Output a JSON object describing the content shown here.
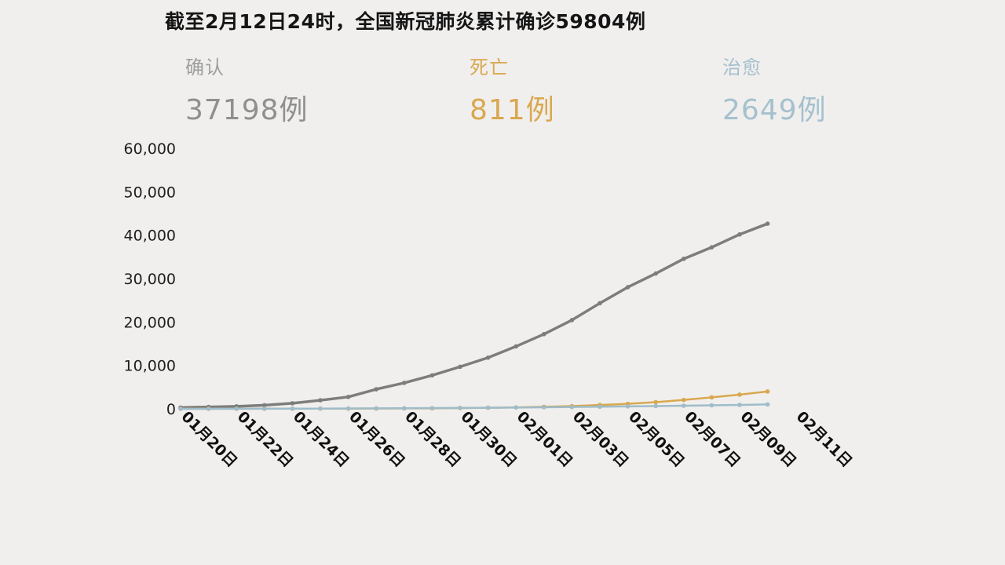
{
  "page": {
    "background": "#f0efee"
  },
  "title": "截至2月12日24时，全国新冠肺炎累计确诊59804例",
  "stats": [
    {
      "label": "确认",
      "value": "37198例",
      "color": "#8f8f8f",
      "label_color": "#9e9e9e"
    },
    {
      "label": "死亡",
      "value": "811例",
      "color": "#d9a84e",
      "label_color": "#d9a84e"
    },
    {
      "label": "治愈",
      "value": "2649例",
      "color": "#a5c1cd",
      "label_color": "#a5c1cd"
    }
  ],
  "chart_data": {
    "type": "line",
    "title": "",
    "xlabel": "",
    "ylabel": "",
    "ylim": [
      0,
      60000
    ],
    "grid": false,
    "legend_position": "none",
    "y_ticks": [
      0,
      10000,
      20000,
      30000,
      40000,
      50000,
      60000
    ],
    "x_tick_labels": [
      "01月20日",
      "01月22日",
      "01月24日",
      "01月26日",
      "01月28日",
      "01月30日",
      "02月01日",
      "02月03日",
      "02月05日",
      "02月07日",
      "02月09日",
      "02月11日"
    ],
    "x": [
      "01月20日",
      "01月21日",
      "01月22日",
      "01月23日",
      "01月24日",
      "01月25日",
      "01月26日",
      "01月27日",
      "01月28日",
      "01月29日",
      "01月30日",
      "01月31日",
      "02月01日",
      "02月02日",
      "02月03日",
      "02月04日",
      "02月05日",
      "02月06日",
      "02月07日",
      "02月08日",
      "02月09日",
      "02月10日"
    ],
    "series": [
      {
        "name": "确认",
        "color": "#7d7d7d",
        "values": [
          291,
          440,
          571,
          830,
          1287,
          1975,
          2744,
          4515,
          5974,
          7711,
          9692,
          11791,
          14380,
          17205,
          20438,
          24324,
          28018,
          31161,
          34546,
          37198,
          40171,
          42638
        ]
      },
      {
        "name": "治愈",
        "color": "#d9a84e",
        "values": [
          25,
          25,
          25,
          34,
          38,
          49,
          51,
          60,
          103,
          124,
          171,
          243,
          328,
          475,
          632,
          892,
          1153,
          1540,
          2050,
          2649,
          3281,
          3996
        ]
      },
      {
        "name": "死亡",
        "color": "#9fbcc9",
        "values": [
          6,
          9,
          17,
          25,
          41,
          56,
          80,
          106,
          132,
          170,
          213,
          259,
          304,
          361,
          425,
          490,
          563,
          636,
          722,
          811,
          908,
          1016
        ]
      }
    ]
  }
}
